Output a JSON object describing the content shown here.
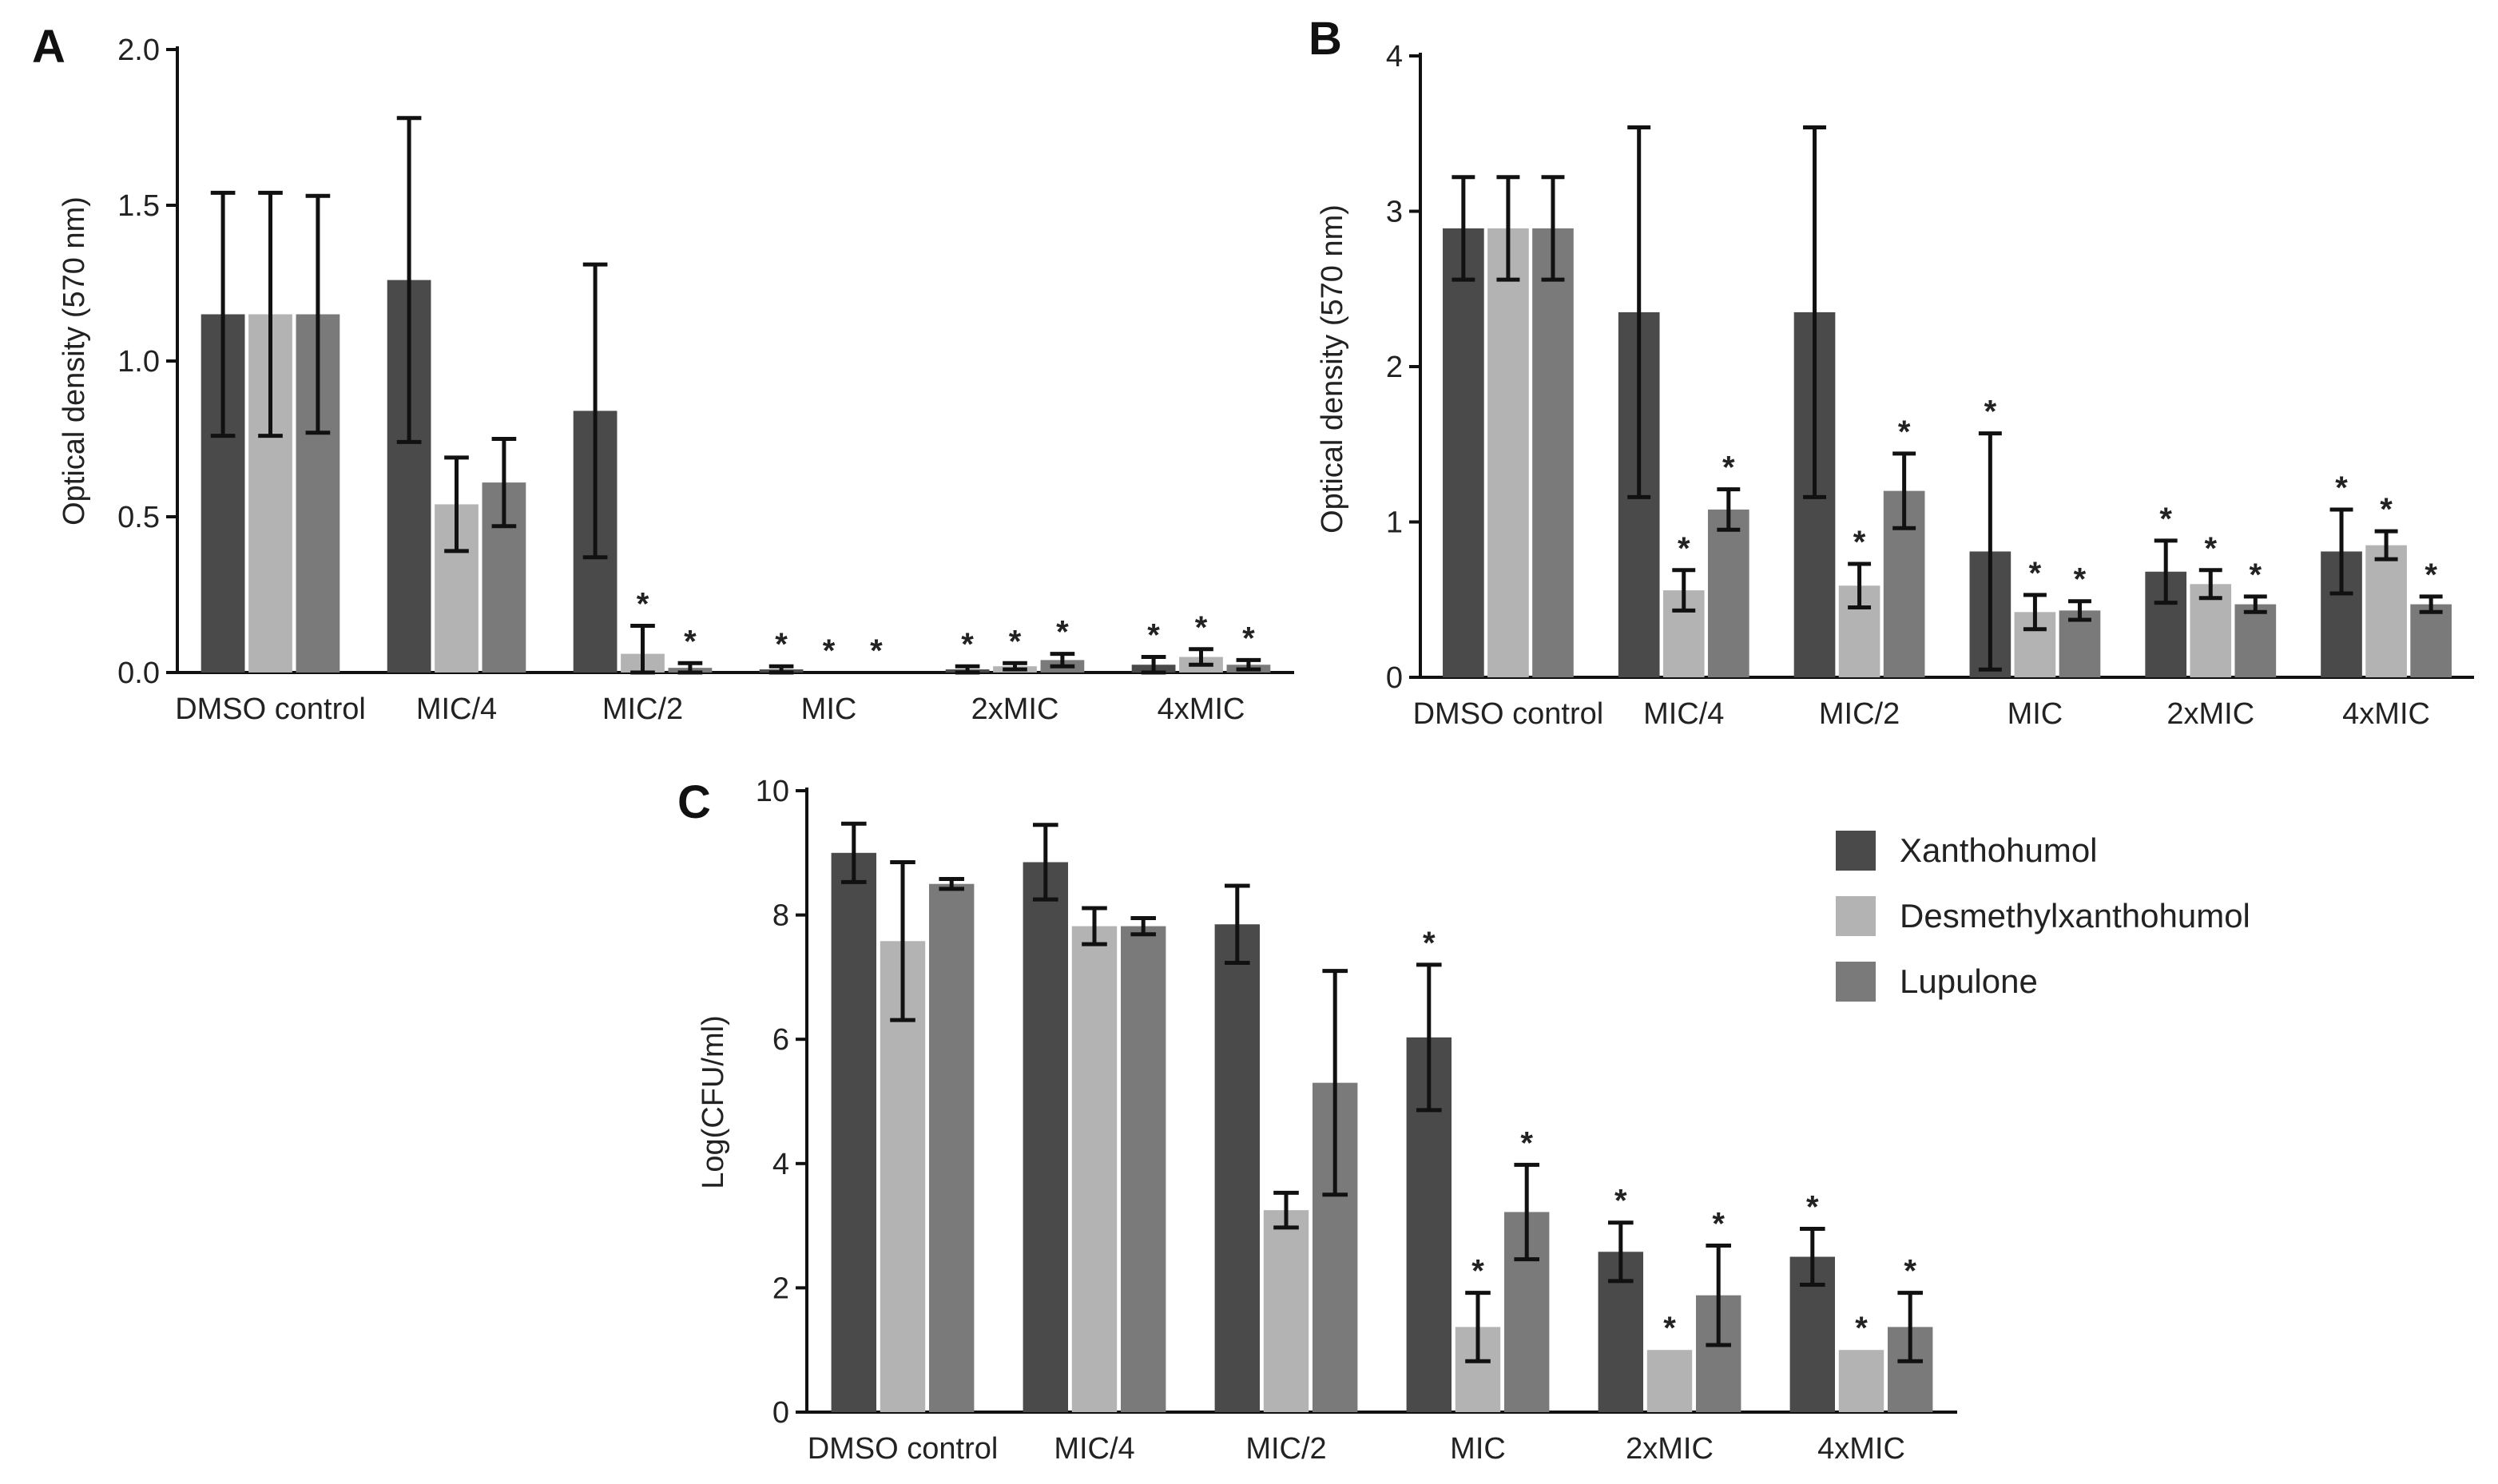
{
  "legend": {
    "items": [
      {
        "name": "Xanthohumol",
        "color": "#4a4a4a"
      },
      {
        "name": "Desmethylxanthohumol",
        "color": "#b3b3b3"
      },
      {
        "name": "Lupulone",
        "color": "#7a7a7a"
      }
    ]
  },
  "chart_data": [
    {
      "panel": "A",
      "type": "bar",
      "ylabel": "Optical density (570 nm)",
      "ylim": [
        0,
        2.0
      ],
      "yticks": [
        "0.0",
        "0.5",
        "1.0",
        "1.5",
        "2.0"
      ],
      "ytick_values": [
        0,
        0.5,
        1.0,
        1.5,
        2.0
      ],
      "categories": [
        "DMSO control",
        "MIC/4",
        "MIC/2",
        "MIC",
        "2xMIC",
        "4xMIC"
      ],
      "series": [
        {
          "name": "Xanthohumol",
          "values": [
            1.15,
            1.26,
            0.84,
            0.01,
            0.01,
            0.025
          ],
          "errors": [
            0.39,
            0.52,
            0.47,
            0.01,
            0.01,
            0.025
          ],
          "significant": [
            false,
            false,
            false,
            true,
            true,
            true
          ]
        },
        {
          "name": "Desmethylxanthohumol",
          "values": [
            1.15,
            0.54,
            0.06,
            0.0,
            0.02,
            0.05
          ],
          "errors": [
            0.39,
            0.15,
            0.09,
            0.0,
            0.01,
            0.025
          ],
          "significant": [
            false,
            false,
            true,
            true,
            true,
            true
          ]
        },
        {
          "name": "Lupulone",
          "values": [
            1.15,
            0.61,
            0.015,
            0.0,
            0.04,
            0.025
          ],
          "errors": [
            0.38,
            0.14,
            0.015,
            0.0,
            0.02,
            0.015
          ],
          "significant": [
            false,
            false,
            true,
            true,
            true,
            true
          ]
        }
      ]
    },
    {
      "panel": "B",
      "type": "bar",
      "ylabel": "Optical density (570 nm)",
      "ylim": [
        0,
        4
      ],
      "yticks": [
        "0",
        "1",
        "2",
        "3",
        "4"
      ],
      "ytick_values": [
        0,
        1,
        2,
        3,
        4
      ],
      "categories": [
        "DMSO control",
        "MIC/4",
        "MIC/2",
        "MIC",
        "2xMIC",
        "4xMIC"
      ],
      "series": [
        {
          "name": "Xanthohumol",
          "values": [
            2.89,
            2.35,
            2.35,
            0.81,
            0.68,
            0.81
          ],
          "errors": [
            0.33,
            1.19,
            1.19,
            0.76,
            0.2,
            0.27
          ],
          "significant": [
            false,
            false,
            false,
            true,
            true,
            true
          ]
        },
        {
          "name": "Desmethylxanthohumol",
          "values": [
            2.89,
            0.56,
            0.59,
            0.42,
            0.6,
            0.85
          ],
          "errors": [
            0.33,
            0.13,
            0.14,
            0.11,
            0.09,
            0.09
          ],
          "significant": [
            false,
            true,
            true,
            true,
            true,
            true
          ]
        },
        {
          "name": "Lupulone",
          "values": [
            2.89,
            1.08,
            1.2,
            0.43,
            0.47,
            0.47
          ],
          "errors": [
            0.33,
            0.13,
            0.24,
            0.06,
            0.05,
            0.05
          ],
          "significant": [
            false,
            true,
            true,
            true,
            true,
            true
          ]
        }
      ]
    },
    {
      "panel": "C",
      "type": "bar",
      "ylabel": "Log(CFU/ml)",
      "ylim": [
        0,
        10
      ],
      "yticks": [
        "0",
        "2",
        "4",
        "6",
        "8",
        "10"
      ],
      "ytick_values": [
        0,
        2,
        4,
        6,
        8,
        10
      ],
      "categories": [
        "DMSO control",
        "MIC/4",
        "MIC/2",
        "MIC",
        "2xMIC",
        "4xMIC"
      ],
      "series": [
        {
          "name": "Xanthohumol",
          "values": [
            9.0,
            8.85,
            7.85,
            6.03,
            2.58,
            2.5
          ],
          "errors": [
            0.47,
            0.6,
            0.62,
            1.17,
            0.47,
            0.45
          ],
          "significant": [
            false,
            false,
            false,
            true,
            true,
            true
          ]
        },
        {
          "name": "Desmethylxanthohumol",
          "values": [
            7.58,
            7.82,
            3.25,
            1.37,
            1.0,
            1.0
          ],
          "errors": [
            1.27,
            0.29,
            0.28,
            0.55,
            0.0,
            0.0
          ],
          "significant": [
            false,
            false,
            false,
            true,
            true,
            true
          ]
        },
        {
          "name": "Lupulone",
          "values": [
            8.5,
            7.82,
            5.3,
            3.22,
            1.88,
            1.37
          ],
          "errors": [
            0.08,
            0.13,
            1.8,
            0.76,
            0.8,
            0.55
          ],
          "significant": [
            false,
            false,
            false,
            true,
            true,
            true
          ]
        }
      ]
    }
  ]
}
